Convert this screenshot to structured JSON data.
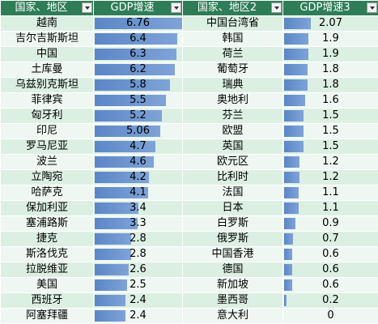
{
  "headers": {
    "col1": "国家、地区",
    "col2": "GDP增速",
    "col3": "国家、地区2",
    "col4": "GDP增速3"
  },
  "max_value": 6.76,
  "rows": [
    {
      "l_name": "越南",
      "l_val": "6.76",
      "r_name": "中国台湾省",
      "r_val": "2.07"
    },
    {
      "l_name": "吉尔吉斯斯坦",
      "l_val": "6.4",
      "r_name": "韩国",
      "r_val": "1.9"
    },
    {
      "l_name": "中国",
      "l_val": "6.3",
      "r_name": "荷兰",
      "r_val": "1.9"
    },
    {
      "l_name": "土库曼",
      "l_val": "6.2",
      "r_name": "葡萄牙",
      "r_val": "1.8"
    },
    {
      "l_name": "乌兹别克斯坦",
      "l_val": "5.8",
      "r_name": "瑞典",
      "r_val": "1.8"
    },
    {
      "l_name": "菲律宾",
      "l_val": "5.5",
      "r_name": "奥地利",
      "r_val": "1.6"
    },
    {
      "l_name": "匈牙利",
      "l_val": "5.2",
      "r_name": "芬兰",
      "r_val": "1.5"
    },
    {
      "l_name": "印尼",
      "l_val": "5.06",
      "r_name": "欧盟",
      "r_val": "1.5"
    },
    {
      "l_name": "罗马尼亚",
      "l_val": "4.7",
      "r_name": "英国",
      "r_val": "1.5"
    },
    {
      "l_name": "波兰",
      "l_val": "4.6",
      "r_name": "欧元区",
      "r_val": "1.2"
    },
    {
      "l_name": "立陶宛",
      "l_val": "4.2",
      "r_name": "比利时",
      "r_val": "1.2"
    },
    {
      "l_name": "哈萨克",
      "l_val": "4.1",
      "r_name": "法国",
      "r_val": "1.1"
    },
    {
      "l_name": "保加利亚",
      "l_val": "3.4",
      "r_name": "日本",
      "r_val": "1.1"
    },
    {
      "l_name": "塞浦路斯",
      "l_val": "3.3",
      "r_name": "白罗斯",
      "r_val": "0.9"
    },
    {
      "l_name": "捷克",
      "l_val": "2.8",
      "r_name": "俄罗斯",
      "r_val": "0.7"
    },
    {
      "l_name": "斯洛伐克",
      "l_val": "2.8",
      "r_name": "中国香港",
      "r_val": "0.6"
    },
    {
      "l_name": "拉脱维亚",
      "l_val": "2.6",
      "r_name": "德国",
      "r_val": "0.6"
    },
    {
      "l_name": "美国",
      "l_val": "2.5",
      "r_name": "新加坡",
      "r_val": "0.6"
    },
    {
      "l_name": "西班牙",
      "l_val": "2.4",
      "r_name": "墨西哥",
      "r_val": "0.2"
    },
    {
      "l_name": "阿塞拜疆",
      "l_val": "2.4",
      "r_name": "意大利",
      "r_val": "0"
    }
  ],
  "colors": {
    "header_bg": "#2e7d57",
    "row_even": "#dcefe3",
    "row_odd": "#eef7f1",
    "databar": "#5b86c6"
  }
}
